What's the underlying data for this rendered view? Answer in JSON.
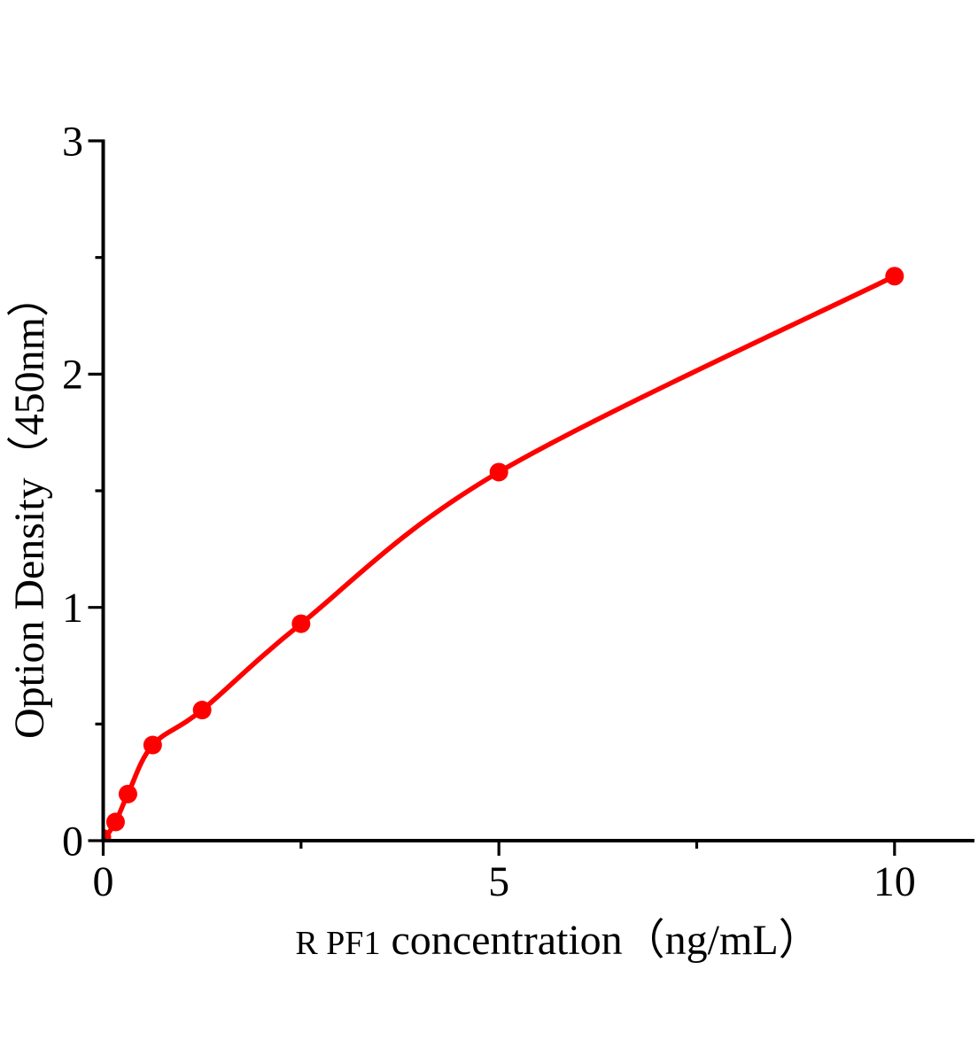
{
  "chart_data": {
    "type": "scatter",
    "title": "",
    "xlabel": "R PF1 concentration（ng/mL）",
    "xlabel_prefix": "R PF1",
    "xlabel_main": "concentration（ng/mL）",
    "ylabel": "Option Density（450nm）",
    "x": [
      0.156,
      0.3125,
      0.625,
      1.25,
      2.5,
      5,
      10
    ],
    "y": [
      0.08,
      0.2,
      0.41,
      0.56,
      0.93,
      1.58,
      2.42
    ],
    "curve_start": [
      0,
      0
    ],
    "xlim": [
      0,
      11
    ],
    "ylim": [
      0,
      3
    ],
    "x_major_ticks": [
      0,
      5,
      10
    ],
    "x_minor_ticks": [
      2.5,
      7.5
    ],
    "y_major_ticks": [
      0,
      1,
      2,
      3
    ],
    "y_minor_ticks": [
      0.5,
      1.5,
      2.5
    ],
    "grid": false,
    "legend": false,
    "marker_color": "#ff0000",
    "line_color": "#ff0000",
    "axis_color": "#000000",
    "background": "#ffffff"
  }
}
